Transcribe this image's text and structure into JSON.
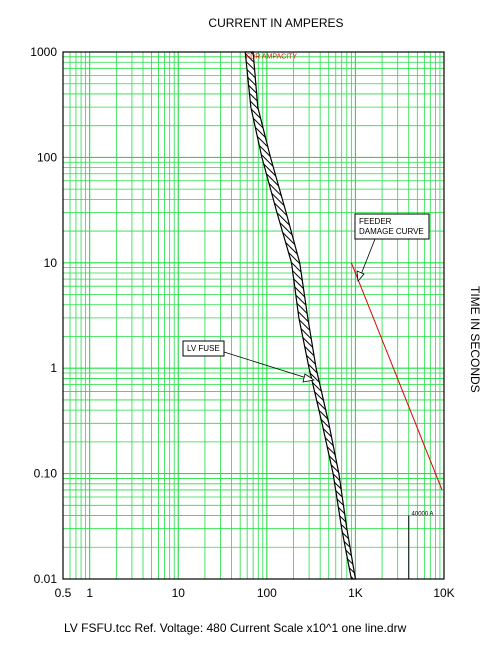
{
  "chart_data": {
    "type": "line",
    "title": "CURRENT IN AMPERES",
    "ylabel": "TIME IN SECONDS",
    "xlim": [
      0.5,
      10000
    ],
    "ylim": [
      0.01,
      1000
    ],
    "xscale": "log",
    "yscale": "log",
    "grid": true,
    "x_ticks": [
      {
        "value": 0.5,
        "label": "0.5"
      },
      {
        "value": 1,
        "label": "1"
      },
      {
        "value": 10,
        "label": "10"
      },
      {
        "value": 100,
        "label": "100"
      },
      {
        "value": 1000,
        "label": "1K"
      },
      {
        "value": 10000,
        "label": "10K"
      }
    ],
    "y_ticks": [
      {
        "value": 1000,
        "label": "1000"
      },
      {
        "value": 100,
        "label": "100"
      },
      {
        "value": 10,
        "label": "10"
      },
      {
        "value": 1,
        "label": "1"
      },
      {
        "value": 0.1,
        "label": "0.10"
      },
      {
        "value": 0.01,
        "label": "0.01"
      }
    ],
    "series": [
      {
        "name": "LV FUSE",
        "style": "hatched-band",
        "color": "#000000",
        "left": [
          [
            57,
            1000
          ],
          [
            66,
            300
          ],
          [
            88,
            100
          ],
          [
            130,
            30
          ],
          [
            190,
            10
          ],
          [
            230,
            3
          ],
          [
            300,
            1
          ],
          [
            420,
            0.3
          ],
          [
            560,
            0.1
          ],
          [
            700,
            0.03
          ],
          [
            900,
            0.01
          ]
        ],
        "right": [
          [
            70,
            1000
          ],
          [
            79,
            300
          ],
          [
            110,
            100
          ],
          [
            165,
            30
          ],
          [
            235,
            10
          ],
          [
            290,
            3
          ],
          [
            360,
            1
          ],
          [
            500,
            0.3
          ],
          [
            650,
            0.1
          ],
          [
            800,
            0.03
          ],
          [
            1000,
            0.01
          ]
        ]
      },
      {
        "name": "FEEDER DAMAGE CURVE",
        "color": "#dd0000",
        "points": [
          [
            900,
            10
          ],
          [
            9500,
            0.07
          ]
        ]
      },
      {
        "name": "",
        "color": "#000000",
        "points": [
          [
            4000,
            0.01
          ],
          [
            4000,
            0.04
          ]
        ]
      }
    ],
    "annotations": [
      {
        "text": "FDR AMPACITY",
        "x": 58,
        "y": 870,
        "color": "#cc2200"
      },
      {
        "text": "FEEDER DAMAGE CURVE",
        "box": true
      },
      {
        "text": "LV FUSE",
        "box": true
      },
      {
        "text": "40000 A",
        "x": 4300,
        "y": 0.04
      }
    ],
    "colors": {
      "grid": "#22dd44",
      "frame": "#000000"
    }
  },
  "labels": {
    "feeder_line1": "FEEDER",
    "feeder_line2": "DAMAGE CURVE",
    "fuse": "LV FUSE"
  },
  "footer": "LV FSFU.tcc   Ref. Voltage: 480   Current Scale x10^1   one line.drw"
}
